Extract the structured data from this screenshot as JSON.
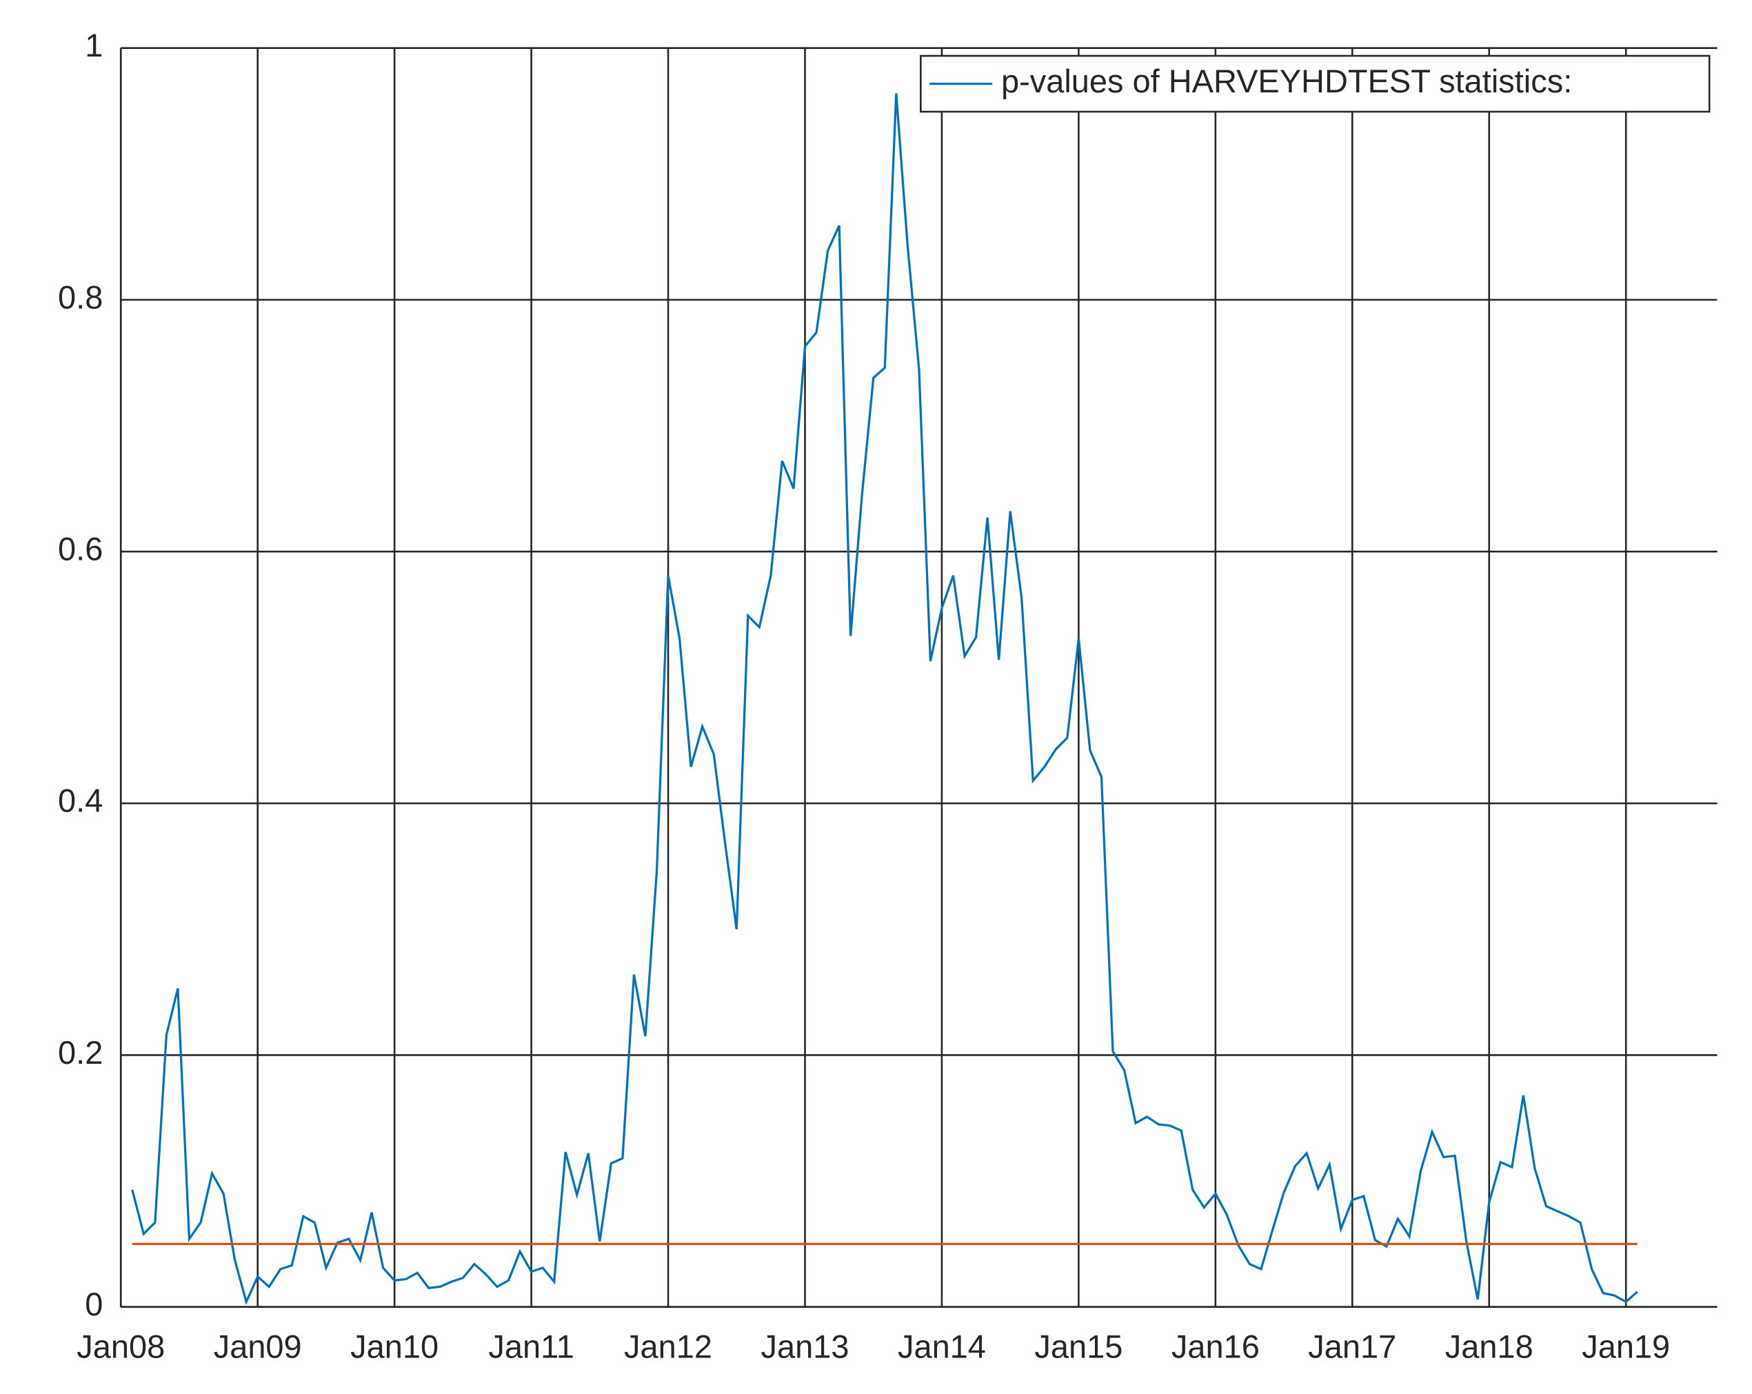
{
  "chart_data": {
    "type": "line",
    "x": [
      "2008-02",
      "2008-03",
      "2008-04",
      "2008-05",
      "2008-06",
      "2008-07",
      "2008-08",
      "2008-09",
      "2008-10",
      "2008-11",
      "2008-12",
      "2009-01",
      "2009-02",
      "2009-03",
      "2009-04",
      "2009-05",
      "2009-06",
      "2009-07",
      "2009-08",
      "2009-09",
      "2009-10",
      "2009-11",
      "2009-12",
      "2010-01",
      "2010-02",
      "2010-03",
      "2010-04",
      "2010-05",
      "2010-06",
      "2010-07",
      "2010-08",
      "2010-09",
      "2010-10",
      "2010-11",
      "2010-12",
      "2011-01",
      "2011-02",
      "2011-03",
      "2011-04",
      "2011-05",
      "2011-06",
      "2011-07",
      "2011-08",
      "2011-09",
      "2011-10",
      "2011-11",
      "2011-12",
      "2012-01",
      "2012-02",
      "2012-03",
      "2012-04",
      "2012-05",
      "2012-06",
      "2012-07",
      "2012-08",
      "2012-09",
      "2012-10",
      "2012-11",
      "2012-12",
      "2013-01",
      "2013-02",
      "2013-03",
      "2013-04",
      "2013-05",
      "2013-06",
      "2013-07",
      "2013-08",
      "2013-09",
      "2013-10",
      "2013-11",
      "2013-12",
      "2014-01",
      "2014-02",
      "2014-03",
      "2014-04",
      "2014-05",
      "2014-06",
      "2014-07",
      "2014-08",
      "2014-09",
      "2014-10",
      "2014-11",
      "2014-12",
      "2015-01",
      "2015-02",
      "2015-03",
      "2015-04",
      "2015-05",
      "2015-06",
      "2015-07",
      "2015-08",
      "2015-09",
      "2015-10",
      "2015-11",
      "2015-12",
      "2016-01",
      "2016-02",
      "2016-03",
      "2016-04",
      "2016-05",
      "2016-06",
      "2016-07",
      "2016-08",
      "2016-09",
      "2016-10",
      "2016-11",
      "2016-12",
      "2017-01",
      "2017-02",
      "2017-03",
      "2017-04",
      "2017-05",
      "2017-06",
      "2017-07",
      "2017-08",
      "2017-09",
      "2017-10",
      "2017-11",
      "2017-12",
      "2018-01",
      "2018-02",
      "2018-03",
      "2018-04",
      "2018-05",
      "2018-06",
      "2018-07",
      "2018-08",
      "2018-09",
      "2018-10",
      "2018-11",
      "2018-12",
      "2019-01",
      "2019-02"
    ],
    "series": [
      {
        "name": "p-values of HARVEYHDTEST statistics:",
        "color": "#0072bd",
        "values": [
          0.093,
          0.058,
          0.067,
          0.216,
          0.253,
          0.054,
          0.067,
          0.106,
          0.09,
          0.037,
          0.004,
          0.024,
          0.016,
          0.03,
          0.033,
          0.072,
          0.067,
          0.031,
          0.051,
          0.054,
          0.037,
          0.075,
          0.031,
          0.021,
          0.022,
          0.027,
          0.015,
          0.016,
          0.02,
          0.023,
          0.034,
          0.026,
          0.016,
          0.021,
          0.044,
          0.028,
          0.031,
          0.02,
          0.123,
          0.089,
          0.122,
          0.052,
          0.114,
          0.118,
          0.264,
          0.215,
          0.346,
          0.581,
          0.531,
          0.429,
          0.461,
          0.439,
          0.368,
          0.3,
          0.549,
          0.54,
          0.581,
          0.672,
          0.65,
          0.763,
          0.774,
          0.839,
          0.859,
          0.533,
          0.645,
          0.738,
          0.746,
          0.964,
          0.843,
          0.745,
          0.513,
          0.555,
          0.581,
          0.517,
          0.532,
          0.627,
          0.514,
          0.632,
          0.563,
          0.418,
          0.429,
          0.443,
          0.452,
          0.531,
          0.442,
          0.421,
          0.203,
          0.188,
          0.146,
          0.151,
          0.145,
          0.144,
          0.14,
          0.093,
          0.079,
          0.09,
          0.073,
          0.049,
          0.034,
          0.03,
          0.061,
          0.091,
          0.112,
          0.122,
          0.094,
          0.113,
          0.062,
          0.085,
          0.088,
          0.053,
          0.048,
          0.07,
          0.056,
          0.108,
          0.139,
          0.119,
          0.12,
          0.052,
          0.006,
          0.083,
          0.115,
          0.111,
          0.168,
          0.11,
          0.08,
          0.076,
          0.072,
          0.067,
          0.03,
          0.011,
          0.009,
          0.004,
          0.012
        ]
      },
      {
        "color": "#d95319",
        "x": [
          "2008-02",
          "2019-02"
        ],
        "values": [
          0.05,
          0.05
        ]
      }
    ],
    "xlim": [
      "2008-01",
      "2019-09"
    ],
    "xticks": [
      {
        "value": "2008-01",
        "label": "Jan08"
      },
      {
        "value": "2009-01",
        "label": "Jan09"
      },
      {
        "value": "2010-01",
        "label": "Jan10"
      },
      {
        "value": "2011-01",
        "label": "Jan11"
      },
      {
        "value": "2012-01",
        "label": "Jan12"
      },
      {
        "value": "2013-01",
        "label": "Jan13"
      },
      {
        "value": "2014-01",
        "label": "Jan14"
      },
      {
        "value": "2015-01",
        "label": "Jan15"
      },
      {
        "value": "2016-01",
        "label": "Jan16"
      },
      {
        "value": "2017-01",
        "label": "Jan17"
      },
      {
        "value": "2018-01",
        "label": "Jan18"
      },
      {
        "value": "2019-01",
        "label": "Jan19"
      }
    ],
    "ylim": [
      0,
      1
    ],
    "yticks": [
      0,
      0.2,
      0.4,
      0.6,
      0.8,
      1
    ],
    "grid": true,
    "legend": "top-right"
  }
}
